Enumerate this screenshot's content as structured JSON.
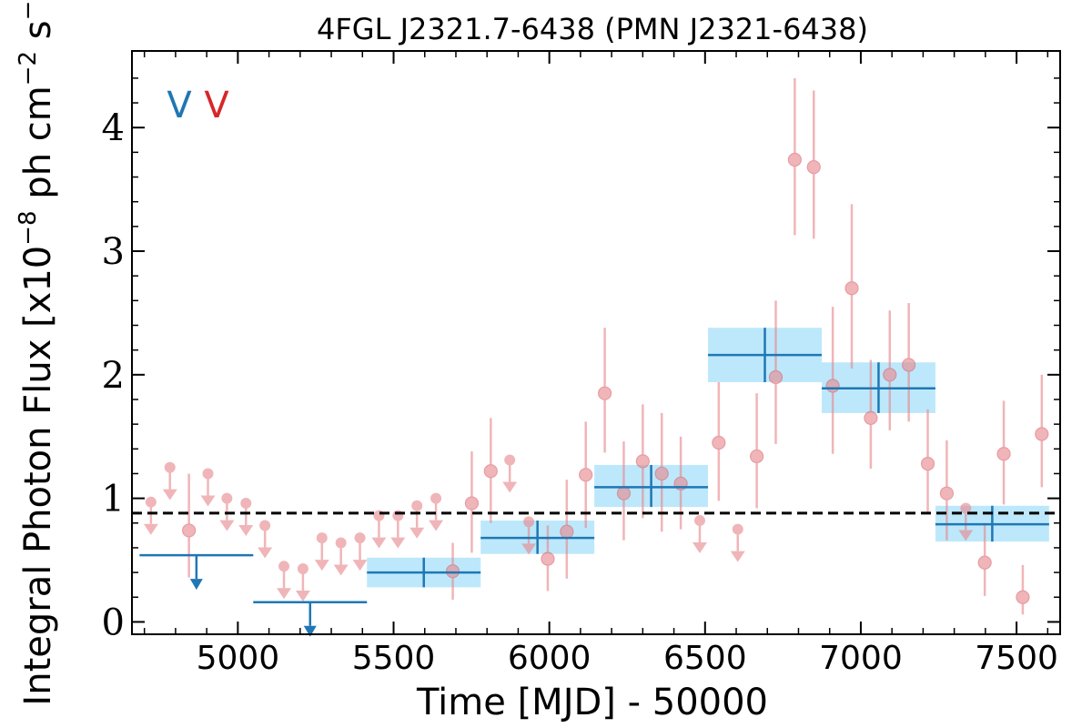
{
  "chart_data": {
    "type": "scatter",
    "title": "4FGL J2321.7-6438 (PMN J2321-6438)",
    "xlabel": "Time [MJD] - 50000",
    "ylabel": "Integral Photon Flux [x10",
    "ylabel_exp1": "−8",
    "ylabel_mid": " ph cm",
    "ylabel_exp2": "−2",
    "ylabel_mid2": " s",
    "ylabel_exp3": "−1",
    "ylabel_end": "]",
    "xlim": [
      4660,
      7640
    ],
    "ylim": [
      -0.1,
      4.62
    ],
    "x_ticks": [
      5000,
      5500,
      6000,
      6500,
      7000,
      7500
    ],
    "x_tick_labels": [
      "5000",
      "5500",
      "6000",
      "6500",
      "7000",
      "7500"
    ],
    "y_ticks": [
      0,
      1,
      2,
      3,
      4
    ],
    "y_tick_labels": [
      "0",
      "1",
      "2",
      "3",
      "4"
    ],
    "mean_flux": 0.88,
    "legend": {
      "placement": "top-left",
      "entries": [
        {
          "label": "V",
          "color": "#1f77b4"
        },
        {
          "label": "V",
          "color": "#d62728"
        }
      ]
    },
    "colors": {
      "long_bins": "#1f77b4",
      "band_fill": "#bde8fb",
      "short_bins": "#e8898d",
      "mean_line": "#000000"
    },
    "series": [
      {
        "bin_width": 365,
        "measurements": [
          {
            "x": 5597,
            "y": 0.4,
            "ylo": 0.28,
            "yhi": 0.52
          },
          {
            "x": 5962,
            "y": 0.68,
            "ylo": 0.55,
            "yhi": 0.82
          },
          {
            "x": 6327,
            "y": 1.09,
            "ylo": 0.93,
            "yhi": 1.27
          },
          {
            "x": 6692,
            "y": 2.16,
            "ylo": 1.94,
            "yhi": 2.38
          },
          {
            "x": 7057,
            "y": 1.89,
            "ylo": 1.69,
            "yhi": 2.1
          },
          {
            "x": 7422,
            "y": 0.79,
            "ylo": 0.65,
            "yhi": 0.94
          }
        ],
        "upper_limits": [
          {
            "x": 4867,
            "y": 0.54
          },
          {
            "x": 5232,
            "y": 0.16
          }
        ]
      },
      {
        "measurements": [
          {
            "x": 4843,
            "y": 0.74,
            "ylo": 0.36,
            "yhi": 1.2
          },
          {
            "x": 5690,
            "y": 0.41,
            "ylo": 0.18,
            "yhi": 0.64
          },
          {
            "x": 5751,
            "y": 0.96,
            "ylo": 0.56,
            "yhi": 1.38
          },
          {
            "x": 5812,
            "y": 1.22,
            "ylo": 0.8,
            "yhi": 1.65
          },
          {
            "x": 5995,
            "y": 0.51,
            "ylo": 0.25,
            "yhi": 0.78
          },
          {
            "x": 6056,
            "y": 0.73,
            "ylo": 0.35,
            "yhi": 1.15
          },
          {
            "x": 6117,
            "y": 1.19,
            "ylo": 0.76,
            "yhi": 1.62
          },
          {
            "x": 6178,
            "y": 1.85,
            "ylo": 1.37,
            "yhi": 2.38
          },
          {
            "x": 6239,
            "y": 1.04,
            "ylo": 0.66,
            "yhi": 1.46
          },
          {
            "x": 6300,
            "y": 1.3,
            "ylo": 0.84,
            "yhi": 1.76
          },
          {
            "x": 6361,
            "y": 1.2,
            "ylo": 0.73,
            "yhi": 1.69
          },
          {
            "x": 6422,
            "y": 1.12,
            "ylo": 0.75,
            "yhi": 1.5
          },
          {
            "x": 6544,
            "y": 1.45,
            "ylo": 0.98,
            "yhi": 1.94
          },
          {
            "x": 6666,
            "y": 1.34,
            "ylo": 0.92,
            "yhi": 1.85
          },
          {
            "x": 6727,
            "y": 1.98,
            "ylo": 1.44,
            "yhi": 2.6
          },
          {
            "x": 6788,
            "y": 3.74,
            "ylo": 3.13,
            "yhi": 4.4
          },
          {
            "x": 6849,
            "y": 3.68,
            "ylo": 3.1,
            "yhi": 4.3
          },
          {
            "x": 6910,
            "y": 1.91,
            "ylo": 1.36,
            "yhi": 2.55
          },
          {
            "x": 6971,
            "y": 2.7,
            "ylo": 2.05,
            "yhi": 3.38
          },
          {
            "x": 7032,
            "y": 1.65,
            "ylo": 1.24,
            "yhi": 2.12
          },
          {
            "x": 7093,
            "y": 2.0,
            "ylo": 1.55,
            "yhi": 2.52
          },
          {
            "x": 7154,
            "y": 2.08,
            "ylo": 1.62,
            "yhi": 2.58
          },
          {
            "x": 7215,
            "y": 1.28,
            "ylo": 0.88,
            "yhi": 1.72
          },
          {
            "x": 7276,
            "y": 1.04,
            "ylo": 0.66,
            "yhi": 1.47
          },
          {
            "x": 7398,
            "y": 0.48,
            "ylo": 0.21,
            "yhi": 0.8
          },
          {
            "x": 7459,
            "y": 1.36,
            "ylo": 0.95,
            "yhi": 1.79
          },
          {
            "x": 7520,
            "y": 0.2,
            "ylo": 0.06,
            "yhi": 0.46
          },
          {
            "x": 7581,
            "y": 1.52,
            "ylo": 1.09,
            "yhi": 2.0
          }
        ],
        "upper_limits": [
          {
            "x": 4721,
            "y": 0.97
          },
          {
            "x": 4782,
            "y": 1.25
          },
          {
            "x": 4904,
            "y": 1.2
          },
          {
            "x": 4965,
            "y": 1.0
          },
          {
            "x": 5026,
            "y": 0.96
          },
          {
            "x": 5087,
            "y": 0.78
          },
          {
            "x": 5148,
            "y": 0.45
          },
          {
            "x": 5209,
            "y": 0.43
          },
          {
            "x": 5270,
            "y": 0.68
          },
          {
            "x": 5331,
            "y": 0.64
          },
          {
            "x": 5392,
            "y": 0.68
          },
          {
            "x": 5453,
            "y": 0.86
          },
          {
            "x": 5514,
            "y": 0.86
          },
          {
            "x": 5575,
            "y": 0.94
          },
          {
            "x": 5636,
            "y": 1.0
          },
          {
            "x": 5934,
            "y": 0.81
          },
          {
            "x": 5873,
            "y": 1.31
          },
          {
            "x": 6483,
            "y": 0.82
          },
          {
            "x": 6605,
            "y": 0.75
          },
          {
            "x": 7337,
            "y": 0.92
          }
        ]
      }
    ]
  }
}
